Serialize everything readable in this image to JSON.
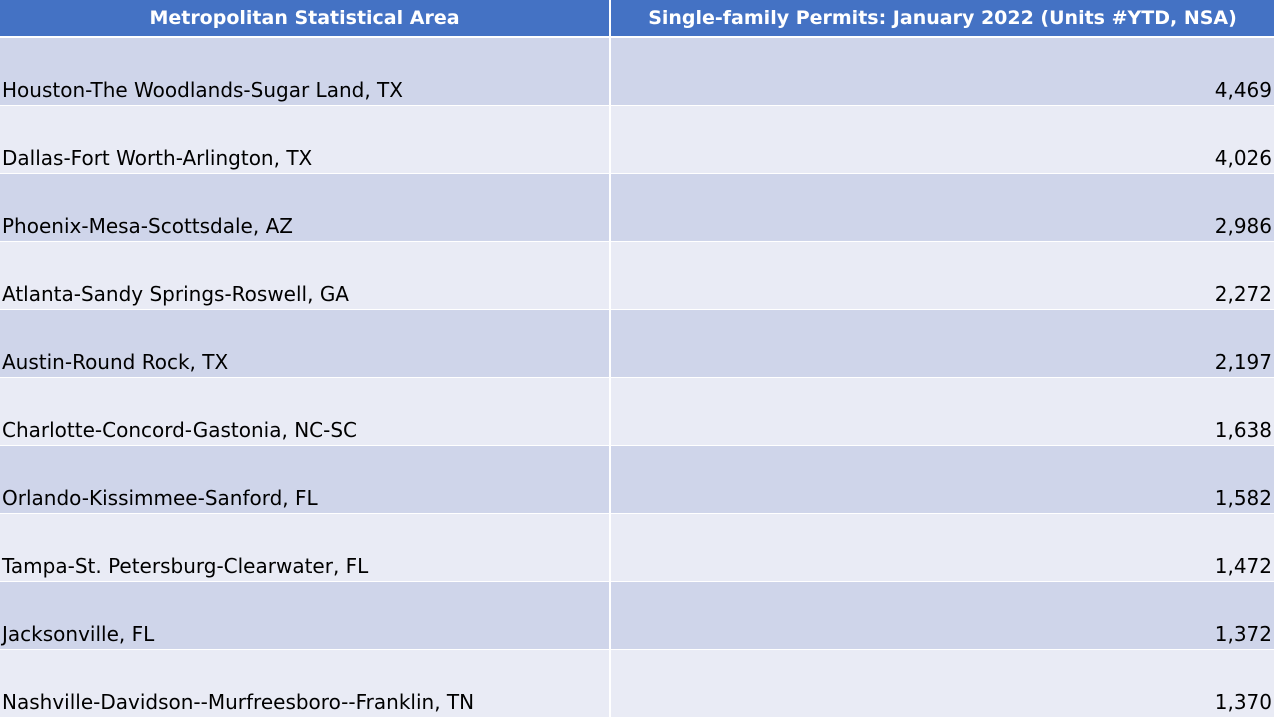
{
  "table": {
    "header": [
      "Metropolitan Statistical Area",
      "Single-family Permits: January 2022 (Units #YTD, NSA)"
    ],
    "rows": [
      [
        "Houston-The Woodlands-Sugar Land, TX",
        "4,469"
      ],
      [
        "Dallas-Fort Worth-Arlington, TX",
        "4,026"
      ],
      [
        "Phoenix-Mesa-Scottsdale, AZ",
        "2,986"
      ],
      [
        "Atlanta-Sandy Springs-Roswell, GA",
        "2,272"
      ],
      [
        "Austin-Round Rock, TX",
        "2,197"
      ],
      [
        "Charlotte-Concord-Gastonia, NC-SC",
        "1,638"
      ],
      [
        "Orlando-Kissimmee-Sanford, FL",
        "1,582"
      ],
      [
        "Tampa-St. Petersburg-Clearwater, FL",
        "1,472"
      ],
      [
        "Jacksonville, FL",
        "1,372"
      ],
      [
        "Nashville-Davidson--Murfreesboro--Franklin, TN",
        "1,370"
      ]
    ]
  }
}
